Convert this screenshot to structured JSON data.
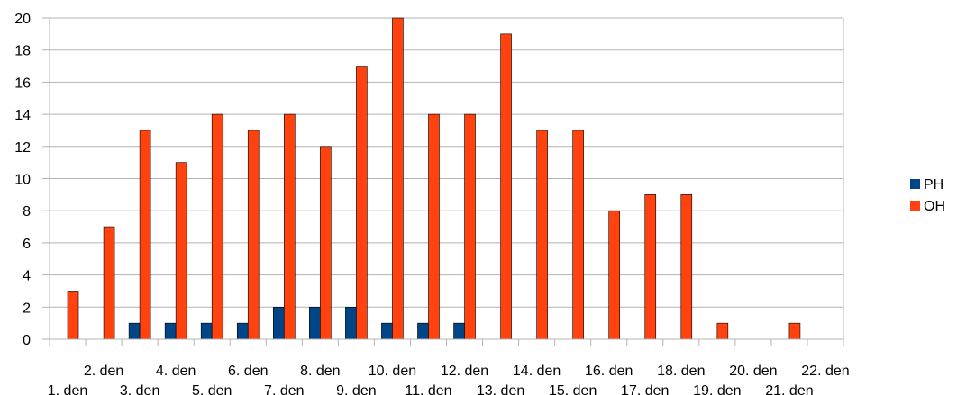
{
  "chart_data": {
    "type": "bar",
    "categories": [
      "1. den",
      "2. den",
      "3. den",
      "4. den",
      "5. den",
      "6. den",
      "7. den",
      "8. den",
      "9. den",
      "10. den",
      "11. den",
      "12. den",
      "13. den",
      "14. den",
      "15. den",
      "16. den",
      "17. den",
      "18. den",
      "19. den",
      "20. den",
      "21. den",
      "22. den"
    ],
    "series": [
      {
        "name": "PH",
        "color": "#004586",
        "values": [
          0,
          0,
          1,
          1,
          1,
          1,
          2,
          2,
          2,
          1,
          1,
          1,
          0,
          0,
          0,
          0,
          0,
          0,
          0,
          0,
          0,
          0
        ]
      },
      {
        "name": "OH",
        "color": "#ff420e",
        "values": [
          3,
          7,
          13,
          11,
          14,
          13,
          14,
          12,
          17,
          20,
          14,
          14,
          19,
          13,
          13,
          8,
          9,
          9,
          1,
          0,
          1,
          0
        ]
      }
    ],
    "title": "",
    "xlabel": "",
    "ylabel": "",
    "ylim": [
      0,
      20
    ],
    "yticks": [
      0,
      2,
      4,
      6,
      8,
      10,
      12,
      14,
      16,
      18,
      20
    ],
    "grid": true,
    "legend": "right"
  }
}
